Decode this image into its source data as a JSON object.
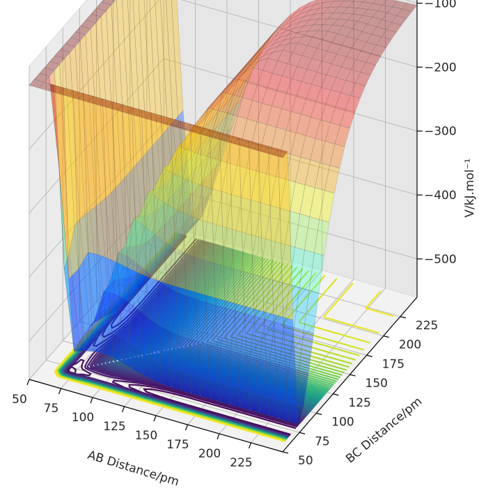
{
  "chart_data": {
    "type": "surface3d-with-contour",
    "title": "",
    "xlabel": "AB Distance/pm",
    "ylabel": "BC Distance/pm",
    "zlabel": "V/kJ.mol⁻¹",
    "xlim": [
      50,
      250
    ],
    "ylim": [
      50,
      250
    ],
    "zlim": [
      -560,
      -70
    ],
    "xticks": [
      "50",
      "75",
      "100",
      "125",
      "150",
      "175",
      "200",
      "225"
    ],
    "yticks": [
      "50",
      "75",
      "100",
      "125",
      "150",
      "175",
      "200",
      "225"
    ],
    "zticks": [
      "−500",
      "−400",
      "−300",
      "−200",
      "−100"
    ],
    "grid": true,
    "surface_colormap": "jet",
    "surface_alpha": 0.35,
    "contour_colormap": "viridis",
    "contour_levels": 60,
    "contour_offset_z": -560,
    "surface_z_range": [
      -545,
      -100
    ],
    "minimum_near": {
      "ab": 75,
      "bc": 230,
      "z": -545
    },
    "second_minimum_near": {
      "ab": 230,
      "bc": 75,
      "z": -545
    },
    "plateau_z": -100
  }
}
